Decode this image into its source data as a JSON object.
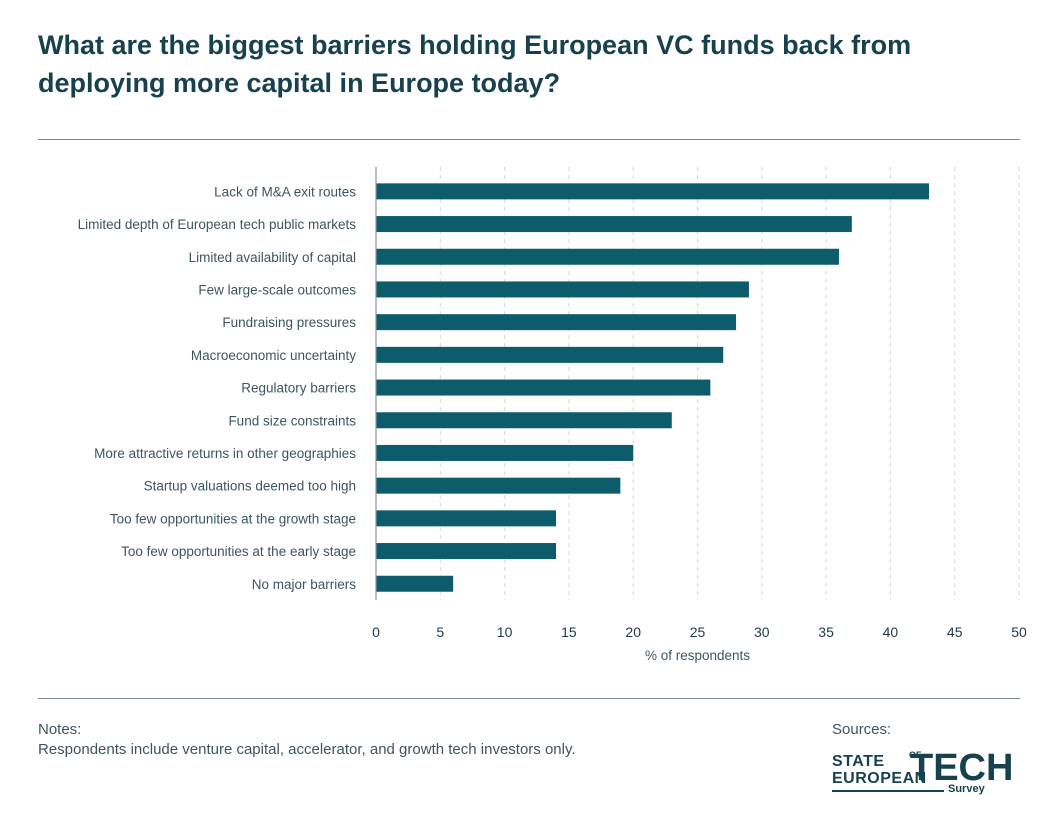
{
  "title": "What are the biggest barriers holding European VC funds back from deploying more capital in Europe today?",
  "colors": {
    "bar": "#0d5c6b",
    "title": "#17414f",
    "grid": "#cfd6d9",
    "text": "#3d5560"
  },
  "chart_data": {
    "type": "bar",
    "orientation": "horizontal",
    "categories": [
      "Lack of M&A exit routes",
      "Limited depth of European tech public markets",
      "Limited availability of capital",
      "Few large-scale outcomes",
      "Fundraising pressures",
      "Macroeconomic uncertainty",
      "Regulatory barriers",
      "Fund size constraints",
      "More attractive returns in other geographies",
      "Startup valuations deemed too high",
      "Too few opportunities at the growth stage",
      "Too few opportunities at the early stage",
      "No major barriers"
    ],
    "values": [
      43,
      37,
      36,
      29,
      28,
      27,
      26,
      23,
      20,
      19,
      14,
      14,
      6
    ],
    "xlabel": "% of respondents",
    "ylabel": "",
    "xlim": [
      0,
      50
    ],
    "xticks": [
      0,
      5,
      10,
      15,
      20,
      25,
      30,
      35,
      40,
      45,
      50
    ],
    "grid": "vertical dashed"
  },
  "notes": {
    "label": "Notes:",
    "text": "Respondents include venture capital, accelerator, and growth tech investors only."
  },
  "sources": {
    "label": "Sources:",
    "logo": {
      "line1": "STATE",
      "of": "OF",
      "line2": "EUROPEAN",
      "tech": "TECH",
      "survey": "Survey"
    }
  }
}
